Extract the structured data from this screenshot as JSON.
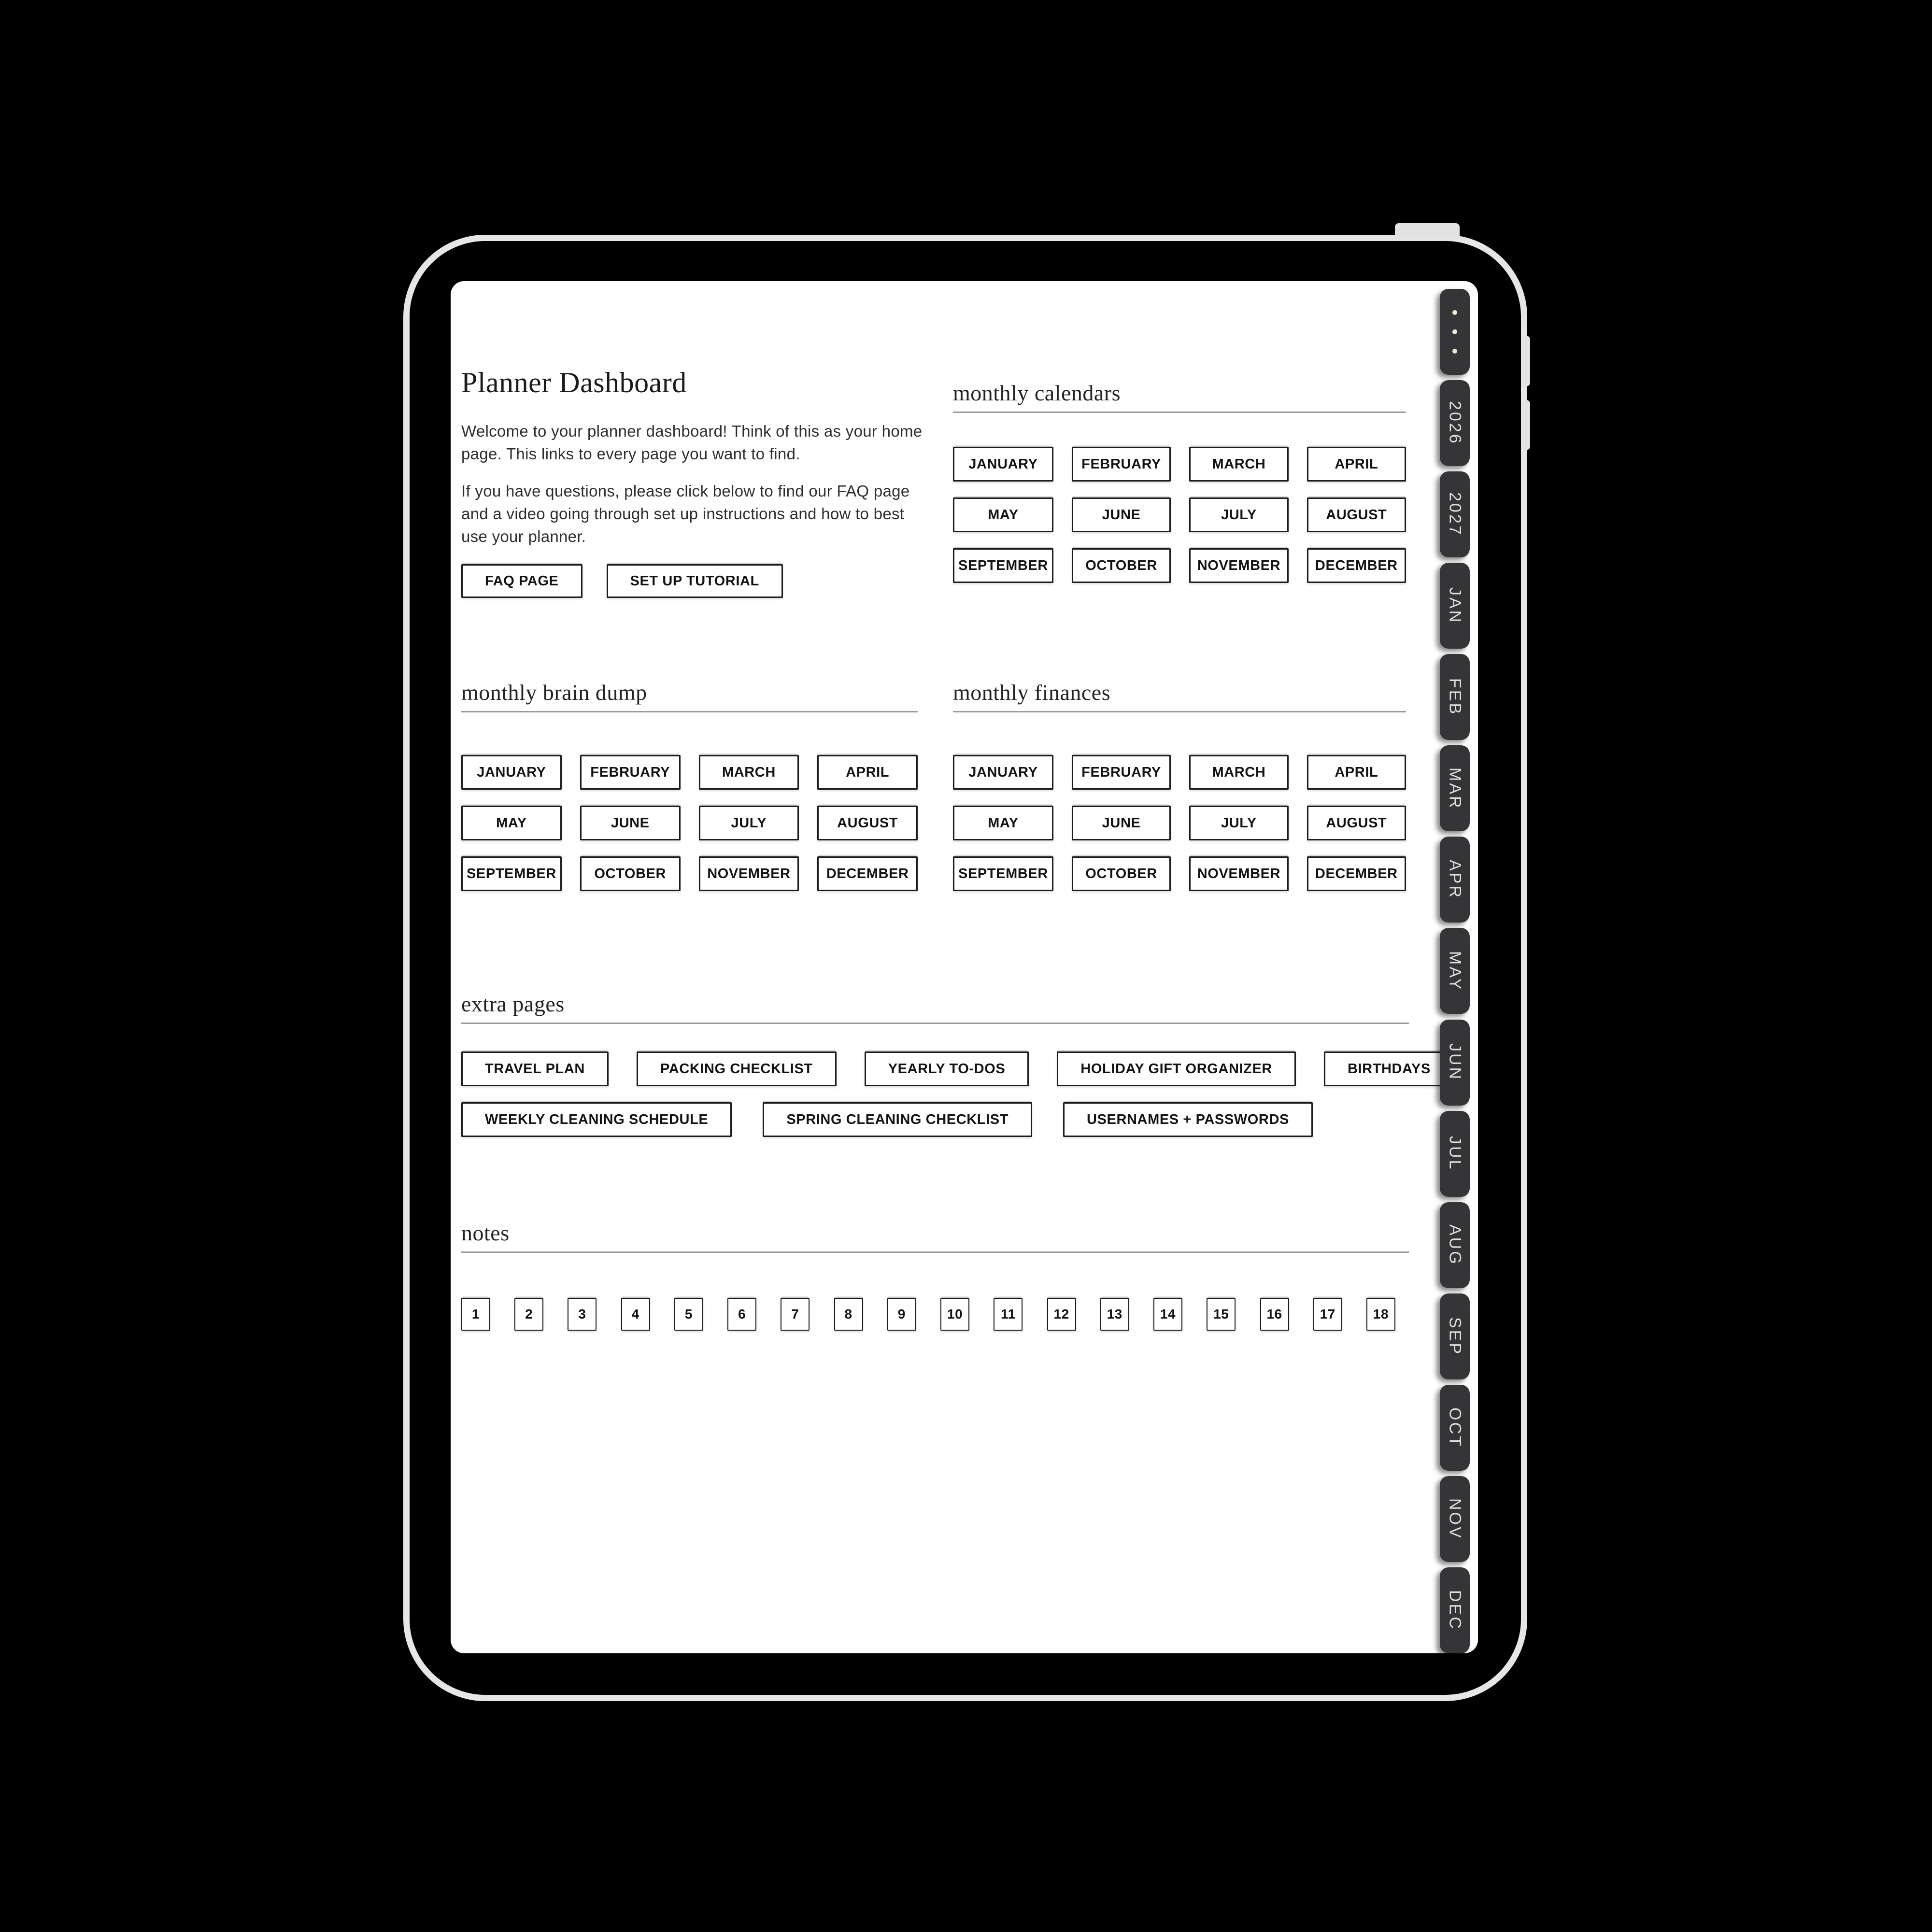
{
  "colors": {
    "background": "#000000",
    "frame_border": "#e6e6e6",
    "page_background": "#ffffff",
    "text": "#1d1d1f",
    "button_border": "#1a1a1a",
    "section_divider": "#9a9a9a",
    "tab_background": "#353537",
    "tab_text": "#dedede",
    "tab_dots": "#f2ead2"
  },
  "page": {
    "title": "Planner Dashboard",
    "intro_paragraph_1": "Welcome to your planner dashboard! Think of this as your home page. This links to every page you want to find.",
    "intro_paragraph_2": "If you have questions, please click below to find our FAQ page and a video going through set up instructions and how to best use your planner.",
    "faq_button": "FAQ PAGE",
    "tutorial_button": "SET UP TUTORIAL"
  },
  "sections": {
    "monthly_calendars": "monthly calendars",
    "monthly_brain_dump": "monthly brain dump",
    "monthly_finances": "monthly finances",
    "extra_pages": "extra pages",
    "notes": "notes"
  },
  "months": [
    "JANUARY",
    "FEBRUARY",
    "MARCH",
    "APRIL",
    "MAY",
    "JUNE",
    "JULY",
    "AUGUST",
    "SEPTEMBER",
    "OCTOBER",
    "NOVEMBER",
    "DECEMBER"
  ],
  "extra_pages": {
    "row1": [
      "TRAVEL PLAN",
      "PACKING CHECKLIST",
      "YEARLY TO-DOS",
      "HOLIDAY GIFT ORGANIZER",
      "BIRTHDAYS"
    ],
    "row2": [
      "WEEKLY CLEANING SCHEDULE",
      "SPRING CLEANING CHECKLIST",
      "USERNAMES + PASSWORDS"
    ]
  },
  "notes_pages": [
    "1",
    "2",
    "3",
    "4",
    "5",
    "6",
    "7",
    "8",
    "9",
    "10",
    "11",
    "12",
    "13",
    "14",
    "15",
    "16",
    "17",
    "18"
  ],
  "side_tabs": [
    "2026",
    "2027",
    "JAN",
    "FEB",
    "MAR",
    "APR",
    "MAY",
    "JUN",
    "JUL",
    "AUG",
    "SEP",
    "OCT",
    "NOV",
    "DEC"
  ]
}
